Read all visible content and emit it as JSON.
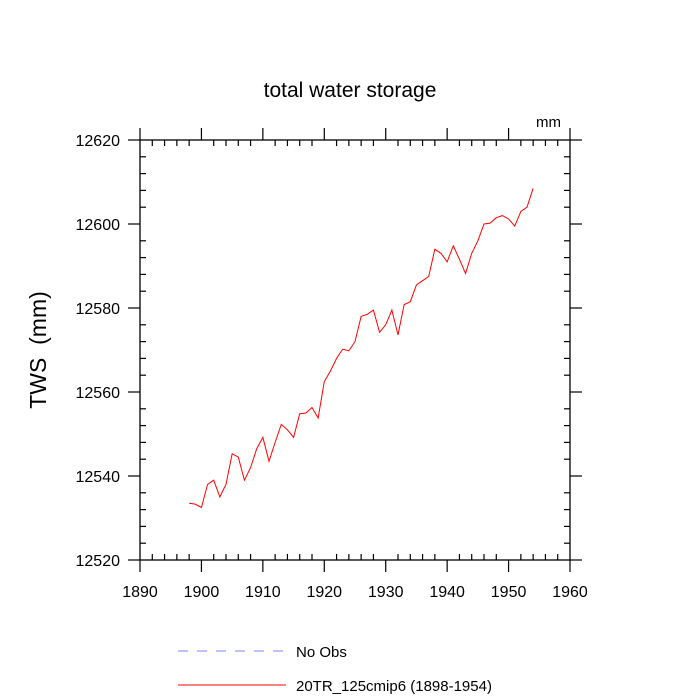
{
  "chart_data": {
    "type": "line",
    "title": "total water storage",
    "units_label": "mm",
    "xlabel": "",
    "ylabel": "TWS  (mm)",
    "xlim": [
      1890,
      1960
    ],
    "ylim": [
      12520,
      12620
    ],
    "x_major_ticks": [
      1890,
      1900,
      1910,
      1920,
      1930,
      1940,
      1950,
      1960
    ],
    "x_minor_step": 2,
    "y_major_ticks": [
      12520,
      12540,
      12560,
      12580,
      12600,
      12620
    ],
    "y_minor_step": 4,
    "grid": false,
    "legend_position": "bottom",
    "series": [
      {
        "name": "No Obs",
        "color": "#8080ff",
        "style": "dashed",
        "x": [],
        "values": []
      },
      {
        "name": "20TR_125cmip6 (1898-1954)",
        "color": "#ff0000",
        "style": "solid",
        "x": [
          1898,
          1899,
          1900,
          1901,
          1902,
          1903,
          1904,
          1905,
          1906,
          1907,
          1908,
          1909,
          1910,
          1911,
          1912,
          1913,
          1914,
          1915,
          1916,
          1917,
          1918,
          1919,
          1920,
          1921,
          1922,
          1923,
          1924,
          1925,
          1926,
          1927,
          1928,
          1929,
          1930,
          1931,
          1932,
          1933,
          1934,
          1935,
          1936,
          1937,
          1938,
          1939,
          1940,
          1941,
          1942,
          1943,
          1944,
          1945,
          1946,
          1947,
          1948,
          1949,
          1950,
          1951,
          1952,
          1953,
          1954
        ],
        "values": [
          12533.5,
          12533.3,
          12532.5,
          12538,
          12539,
          12535,
          12538,
          12545.3,
          12544.5,
          12539,
          12542,
          12546.5,
          12549.2,
          12543.5,
          12548,
          12552.3,
          12551,
          12549.2,
          12554.8,
          12555,
          12556.3,
          12553.8,
          12562.5,
          12565,
          12568,
          12570.2,
          12569.8,
          12572,
          12578,
          12578.5,
          12579.5,
          12574.2,
          12576,
          12579.5,
          12573.6,
          12580.8,
          12581.5,
          12585.5,
          12586.5,
          12587.5,
          12594,
          12593,
          12591,
          12594.8,
          12591.6,
          12588.2,
          12593,
          12596,
          12600,
          12600.2,
          12601.5,
          12602,
          12601.2,
          12599.5,
          12603,
          12604,
          12608.5
        ]
      }
    ]
  }
}
